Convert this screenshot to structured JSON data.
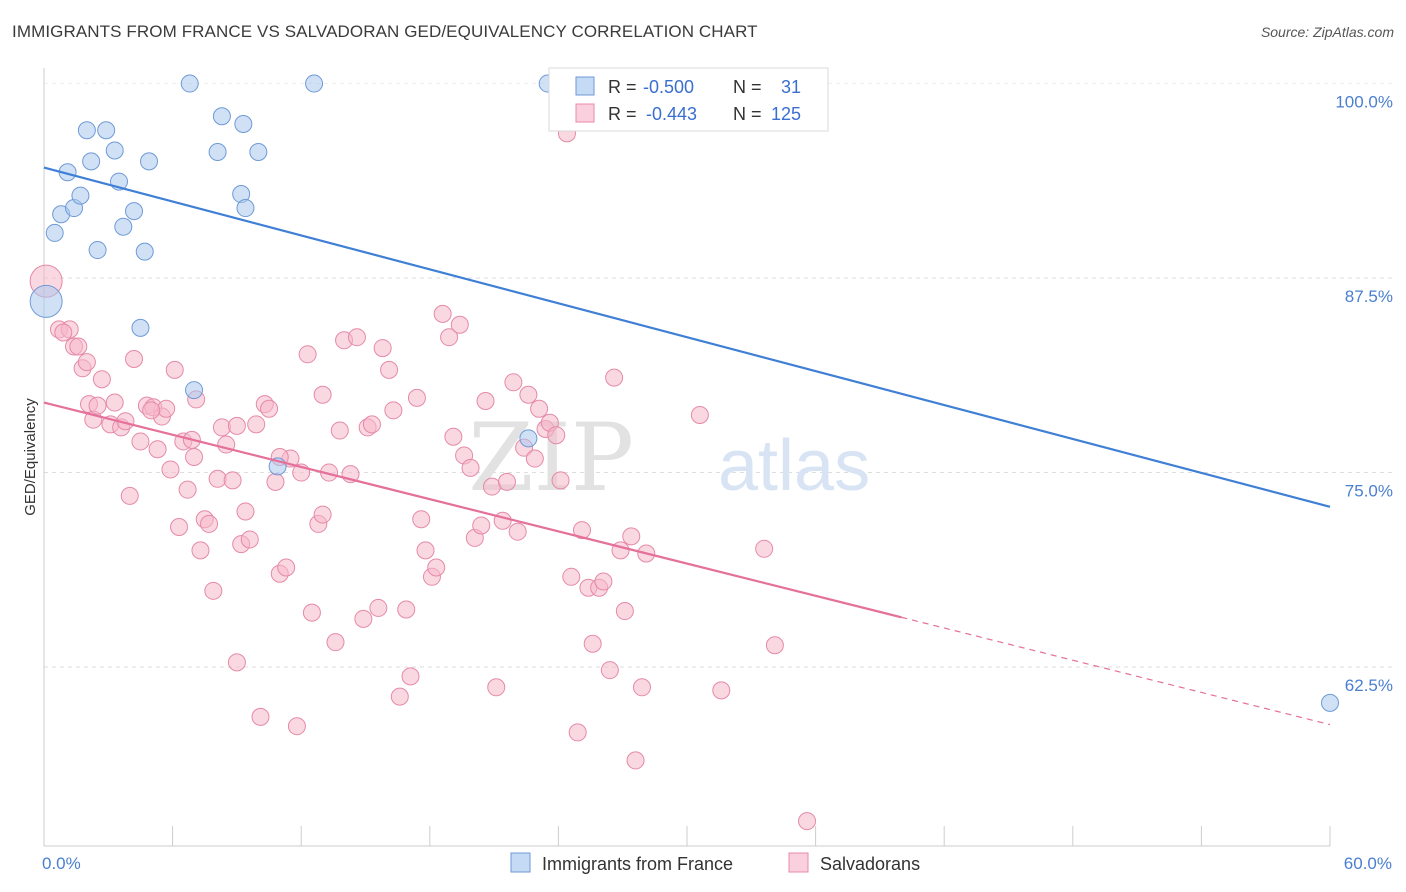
{
  "header": {
    "title": "IMMIGRANTS FROM FRANCE VS SALVADORAN GED/EQUIVALENCY CORRELATION CHART",
    "source": "Source: ZipAtlas.com"
  },
  "watermark": {
    "zip": "ZIP",
    "atlas": "atlas"
  },
  "legend": {
    "rows": [
      {
        "r_label": "R =",
        "r_value": "-0.500",
        "n_label": "N =",
        "n_value": "31",
        "color": "#aac8ef"
      },
      {
        "r_label": "R =",
        "r_value": "-0.443",
        "n_label": "N =",
        "n_value": "125",
        "color": "#f5b8cb"
      }
    ]
  },
  "bottom_legend": [
    {
      "label": "Immigrants from France",
      "color": "#aac8ef"
    },
    {
      "label": "Salvadorans",
      "color": "#f5b8cb"
    }
  ],
  "chart_data": {
    "type": "scatter",
    "title": "IMMIGRANTS FROM FRANCE VS SALVADORAN GED/EQUIVALENCY CORRELATION CHART",
    "xlabel": "",
    "ylabel": "GED/Equivalency",
    "xlim": [
      0,
      60
    ],
    "ylim": [
      51,
      101
    ],
    "x_tick_labels": [
      "0.0%",
      "60.0%"
    ],
    "y_ticks": [
      62.5,
      75.0,
      87.5,
      100.0
    ],
    "y_tick_labels": [
      "62.5%",
      "75.0%",
      "87.5%",
      "100.0%"
    ],
    "grid": true,
    "legend_position": "top-center",
    "series": [
      {
        "name": "Immigrants from France",
        "color": "#aac8ef",
        "edge": "#6f9ad6",
        "line_color": "#3f7fd6",
        "trend": {
          "x": [
            0,
            60
          ],
          "y": [
            94.6,
            72.8
          ],
          "dashed_after": null
        },
        "points": [
          [
            0.1,
            86.0
          ],
          [
            0.5,
            90.4
          ],
          [
            0.8,
            91.6
          ],
          [
            1.1,
            94.3
          ],
          [
            1.4,
            92.0
          ],
          [
            1.7,
            92.8
          ],
          [
            2.0,
            97.0
          ],
          [
            2.2,
            95.0
          ],
          [
            2.5,
            89.3
          ],
          [
            2.9,
            97.0
          ],
          [
            3.3,
            95.7
          ],
          [
            3.5,
            93.7
          ],
          [
            3.7,
            90.8
          ],
          [
            4.2,
            91.8
          ],
          [
            4.7,
            89.2
          ],
          [
            4.9,
            95.0
          ],
          [
            6.8,
            100.0
          ],
          [
            8.1,
            95.6
          ],
          [
            8.3,
            97.9
          ],
          [
            9.3,
            97.4
          ],
          [
            9.2,
            92.9
          ],
          [
            9.4,
            92.0
          ],
          [
            10.0,
            95.6
          ],
          [
            12.6,
            100.0
          ],
          [
            23.5,
            100.0
          ],
          [
            32.4,
            100.0
          ],
          [
            4.5,
            84.3
          ],
          [
            7.0,
            80.3
          ],
          [
            10.9,
            75.4
          ],
          [
            22.6,
            77.2
          ],
          [
            60.0,
            60.2
          ]
        ]
      },
      {
        "name": "Salvadorans",
        "color": "#f5b8cb",
        "edge": "#e58aa8",
        "line_color": "#e5709a",
        "trend": {
          "x": [
            0,
            60
          ],
          "y": [
            79.5,
            58.8
          ],
          "dashed_after": 40
        },
        "points": [
          [
            0.1,
            87.3
          ],
          [
            0.7,
            84.2
          ],
          [
            1.2,
            84.2
          ],
          [
            1.4,
            83.1
          ],
          [
            1.6,
            83.1
          ],
          [
            1.8,
            81.7
          ],
          [
            2.0,
            82.1
          ],
          [
            2.1,
            79.4
          ],
          [
            2.3,
            78.4
          ],
          [
            2.5,
            79.3
          ],
          [
            2.7,
            81.0
          ],
          [
            3.1,
            78.1
          ],
          [
            3.3,
            79.5
          ],
          [
            3.6,
            77.9
          ],
          [
            3.8,
            78.3
          ],
          [
            4.0,
            73.5
          ],
          [
            4.2,
            82.3
          ],
          [
            4.5,
            77.0
          ],
          [
            4.8,
            79.3
          ],
          [
            5.1,
            79.2
          ],
          [
            5.3,
            76.5
          ],
          [
            5.5,
            78.6
          ],
          [
            5.7,
            79.1
          ],
          [
            5.9,
            75.2
          ],
          [
            6.1,
            81.6
          ],
          [
            6.3,
            71.5
          ],
          [
            6.5,
            77.0
          ],
          [
            6.7,
            73.9
          ],
          [
            6.9,
            77.1
          ],
          [
            7.1,
            79.7
          ],
          [
            7.3,
            70.0
          ],
          [
            7.5,
            72.0
          ],
          [
            7.7,
            71.7
          ],
          [
            7.9,
            67.4
          ],
          [
            8.1,
            74.6
          ],
          [
            8.3,
            77.9
          ],
          [
            8.5,
            76.8
          ],
          [
            8.8,
            74.5
          ],
          [
            9.0,
            62.8
          ],
          [
            9.2,
            70.4
          ],
          [
            9.4,
            72.5
          ],
          [
            9.6,
            70.7
          ],
          [
            9.9,
            78.1
          ],
          [
            10.1,
            59.3
          ],
          [
            10.3,
            79.4
          ],
          [
            10.5,
            79.1
          ],
          [
            10.8,
            74.4
          ],
          [
            11.0,
            68.5
          ],
          [
            11.3,
            68.9
          ],
          [
            11.5,
            75.9
          ],
          [
            11.8,
            58.7
          ],
          [
            12.0,
            75.0
          ],
          [
            12.3,
            82.6
          ],
          [
            12.5,
            66.0
          ],
          [
            12.8,
            71.7
          ],
          [
            13.0,
            72.3
          ],
          [
            13.3,
            75.0
          ],
          [
            13.6,
            64.1
          ],
          [
            13.8,
            77.7
          ],
          [
            14.0,
            83.5
          ],
          [
            14.3,
            74.9
          ],
          [
            14.6,
            83.7
          ],
          [
            14.9,
            65.6
          ],
          [
            15.1,
            77.9
          ],
          [
            15.3,
            78.1
          ],
          [
            15.6,
            66.3
          ],
          [
            15.8,
            83.0
          ],
          [
            16.1,
            81.6
          ],
          [
            16.3,
            79.0
          ],
          [
            16.6,
            60.6
          ],
          [
            16.9,
            66.2
          ],
          [
            17.1,
            61.9
          ],
          [
            17.4,
            79.8
          ],
          [
            17.6,
            72.0
          ],
          [
            17.8,
            70.0
          ],
          [
            18.1,
            68.3
          ],
          [
            18.3,
            68.9
          ],
          [
            18.6,
            85.2
          ],
          [
            18.9,
            83.7
          ],
          [
            19.1,
            77.3
          ],
          [
            19.4,
            84.5
          ],
          [
            19.6,
            76.1
          ],
          [
            19.9,
            75.3
          ],
          [
            20.1,
            70.8
          ],
          [
            20.4,
            71.6
          ],
          [
            20.6,
            79.6
          ],
          [
            20.9,
            74.1
          ],
          [
            21.1,
            61.2
          ],
          [
            21.4,
            71.9
          ],
          [
            21.6,
            74.4
          ],
          [
            21.9,
            80.8
          ],
          [
            22.1,
            71.2
          ],
          [
            22.4,
            76.6
          ],
          [
            22.6,
            80.0
          ],
          [
            22.9,
            75.9
          ],
          [
            23.1,
            79.1
          ],
          [
            23.4,
            77.8
          ],
          [
            23.6,
            78.2
          ],
          [
            23.9,
            77.4
          ],
          [
            24.1,
            74.5
          ],
          [
            24.4,
            96.8
          ],
          [
            24.6,
            68.3
          ],
          [
            24.9,
            58.3
          ],
          [
            25.1,
            71.3
          ],
          [
            25.4,
            67.6
          ],
          [
            25.6,
            64.0
          ],
          [
            25.9,
            67.6
          ],
          [
            26.1,
            68.0
          ],
          [
            26.4,
            62.3
          ],
          [
            26.6,
            81.1
          ],
          [
            26.9,
            70.0
          ],
          [
            27.1,
            66.1
          ],
          [
            27.4,
            70.9
          ],
          [
            27.6,
            56.5
          ],
          [
            27.9,
            61.2
          ],
          [
            28.1,
            69.8
          ],
          [
            30.6,
            78.7
          ],
          [
            31.6,
            61.0
          ],
          [
            33.6,
            70.1
          ],
          [
            34.1,
            63.9
          ],
          [
            35.6,
            52.6
          ],
          [
            5.0,
            79.0
          ],
          [
            7.0,
            76.0
          ],
          [
            9.0,
            78.0
          ],
          [
            11.0,
            76.0
          ],
          [
            13.0,
            80.0
          ],
          [
            0.9,
            84.0
          ]
        ]
      }
    ]
  }
}
